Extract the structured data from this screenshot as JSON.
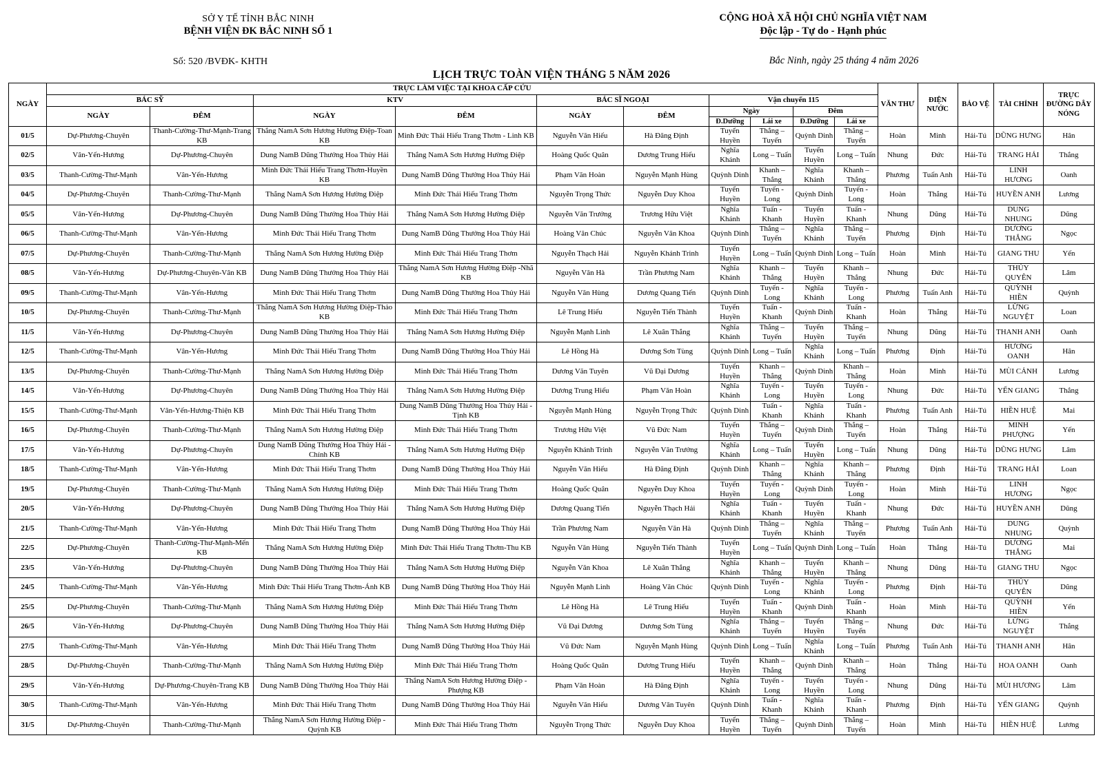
{
  "header": {
    "org_line1": "SỞ Y TẾ TỈNH BẮC NINH",
    "org_line2": "BỆNH VIỆN ĐK BẮC NINH SỐ 1",
    "doc_number": "Số: 520 /BVĐK- KHTH",
    "national_line1": "CỘNG HOÀ XÃ HỘI CHỦ NGHĨA VIỆT NAM",
    "national_line2": "Độc lập - Tự do - Hạnh phúc",
    "date_line": "Bắc Ninh, ngày 25 tháng 4 năm 2026",
    "title": "LỊCH TRỰC TOÀN VIỆN THÁNG 5 NĂM 2026"
  },
  "table": {
    "head": {
      "ngay": "NGÀY",
      "banner": "TRỰC LÀM VIỆC TẠI KHOA CẤP CỨU",
      "bac_sy": "BÁC SỸ",
      "ktv": "KTV",
      "bac_si_ngoai": "BÁC SĨ NGOẠI",
      "van_chuyen": "Vận chuyển 115",
      "sub_ngay_caps": "NGÀY",
      "sub_dem_caps": "ĐÊM",
      "sub_ngay": "Ngày",
      "sub_dem": "Đêm",
      "d_duong": "Đ.Dưỡng",
      "lai_xe": "Lái xe",
      "van_thu": "VĂN THƯ",
      "dien_nuoc": "ĐIỆN NƯỚC",
      "bao_ve": "BẢO VỆ",
      "tai_chinh": "TÀI CHÍNH",
      "duong_day_nong": "TRỰC ĐƯỜNG DÂY NÓNG"
    },
    "rows": [
      [
        "01/5",
        "Dự-Phương-Chuyên",
        "Thanh-Cường-Thư-Mạnh-Trang KB",
        "Thắng NamA Sơn Hương Hường Điệp-Toan KB",
        "Minh Đức Thái Hiếu Trang Thơm - Linh KB",
        "Nguyễn Văn Hiếu",
        "Hà Đăng Định",
        "Tuyển Huyền",
        "Thắng – Tuyến",
        "Quỳnh Dinh",
        "Thắng – Tuyến",
        "Hoàn",
        "Minh",
        "Hải-Tú",
        "DŨNG HƯNG",
        "Hân"
      ],
      [
        "02/5",
        "Vân-Yến-Hương",
        "Dự-Phương-Chuyên",
        "Dung NamB Dũng Thưởng Hoa Thủy Hải",
        "Thắng NamA Sơn Hương Hường Điệp",
        "Hoàng Quốc Quân",
        "Dương Trung Hiếu",
        "Nghĩa Khánh",
        "Long – Tuấn",
        "Tuyển Huyền",
        "Long – Tuấn",
        "Nhung",
        "Đức",
        "Hải-Tú",
        "TRANG HẢI",
        "Thắng"
      ],
      [
        "03/5",
        "Thanh-Cường-Thư-Mạnh",
        "Vân-Yến-Hương",
        "Minh Đức Thái Hiếu Trang Thơm-Huyền KB",
        "Dung NamB Dũng Thưởng Hoa Thủy Hải",
        "Phạm Văn Hoàn",
        "Nguyễn Mạnh Hùng",
        "Quỳnh Dinh",
        "Khanh – Thắng",
        "Nghĩa Khánh",
        "Khanh – Thắng",
        "Phương",
        "Tuấn Anh",
        "Hải-Tú",
        "LINH HƯƠNG",
        "Oanh"
      ],
      [
        "04/5",
        "Dự-Phương-Chuyên",
        "Thanh-Cường-Thư-Mạnh",
        "Thắng NamA Sơn Hương Hường Điệp",
        "Minh Đức Thái Hiếu Trang Thơm",
        "Nguyễn Trọng Thức",
        "Nguyễn Duy Khoa",
        "Tuyển Huyền",
        "Tuyến - Long",
        "Quỳnh Dinh",
        "Tuyến - Long",
        "Hoàn",
        "Thắng",
        "Hải-Tú",
        "HUYỀN ANH",
        "Lương"
      ],
      [
        "05/5",
        "Vân-Yến-Hương",
        "Dự-Phương-Chuyên",
        "Dung NamB Dũng Thưởng Hoa Thủy Hải",
        "Thắng NamA Sơn Hương Hường Điệp",
        "Nguyễn Văn Trưởng",
        "Trương Hữu Việt",
        "Nghĩa Khánh",
        "Tuấn - Khanh",
        "Tuyển Huyền",
        "Tuấn - Khanh",
        "Nhung",
        "Dũng",
        "Hải-Tú",
        "DUNG NHUNG",
        "Dũng"
      ],
      [
        "06/5",
        "Thanh-Cường-Thư-Mạnh",
        "Vân-Yến-Hương",
        "Minh Đức Thái Hiếu Trang Thơm",
        "Dung NamB Dũng Thưởng Hoa Thủy Hải",
        "Hoàng Văn Chúc",
        "Nguyễn Văn Khoa",
        "Quỳnh Dinh",
        "Thắng – Tuyến",
        "Nghĩa Khánh",
        "Thắng – Tuyến",
        "Phương",
        "Định",
        "Hải-Tú",
        "DƯƠNG THẮNG",
        "Ngọc"
      ],
      [
        "07/5",
        "Dự-Phương-Chuyên",
        "Thanh-Cường-Thư-Mạnh",
        "Thắng NamA Sơn Hương Hường Điệp",
        "Minh Đức Thái Hiếu Trang Thơm",
        "Nguyễn Thạch Hải",
        "Nguyễn Khánh Trinh",
        "Tuyển Huyền",
        "Long – Tuấn",
        "Quỳnh Dinh",
        "Long – Tuấn",
        "Hoàn",
        "Minh",
        "Hải-Tú",
        "GIANG THU",
        "Yến"
      ],
      [
        "08/5",
        "Vân-Yến-Hương",
        "Dự-Phương-Chuyên-Vân KB",
        "Dung NamB Dũng Thưởng Hoa Thủy Hải",
        "Thắng NamA Sơn Hương Hường Điệp -Nhã KB",
        "Nguyễn Văn Hà",
        "Trần Phương Nam",
        "Nghĩa Khánh",
        "Khanh – Thắng",
        "Tuyển Huyền",
        "Khanh – Thắng",
        "Nhung",
        "Đức",
        "Hải-Tú",
        "THÚY QUYÊN",
        "Lâm"
      ],
      [
        "09/5",
        "Thanh-Cường-Thư-Mạnh",
        "Vân-Yến-Hương",
        "Minh Đức Thái Hiếu Trang Thơm",
        "Dung NamB Dũng Thưởng Hoa Thủy Hải",
        "Nguyễn Văn Hùng",
        "Dương Quang Tiến",
        "Quỳnh Dinh",
        "Tuyến - Long",
        "Nghĩa Khánh",
        "Tuyến - Long",
        "Phương",
        "Tuấn Anh",
        "Hải-Tú",
        "QUỲNH HIỀN",
        "Quỳnh"
      ],
      [
        "10/5",
        "Dự-Phương-Chuyên",
        "Thanh-Cường-Thư-Mạnh",
        "Thắng NamA Sơn Hương Hường Điệp-Thảo KB",
        "Minh Đức Thái Hiếu Trang Thơm",
        "Lê Trung Hiếu",
        "Nguyễn Tiến Thành",
        "Tuyển Huyền",
        "Tuấn - Khanh",
        "Quỳnh Dinh",
        "Tuấn - Khanh",
        "Hoàn",
        "Thắng",
        "Hải-Tú",
        "LỪNG NGUYỆT",
        "Loan"
      ],
      [
        "11/5",
        "Vân-Yến-Hương",
        "Dự-Phương-Chuyên",
        "Dung NamB Dũng Thưởng Hoa Thủy Hải",
        "Thắng NamA Sơn Hương Hường Điệp",
        "Nguyễn Mạnh Linh",
        "Lê Xuân Thắng",
        "Nghĩa Khánh",
        "Thắng – Tuyến",
        "Tuyển Huyền",
        "Thắng – Tuyến",
        "Nhung",
        "Dũng",
        "Hải-Tú",
        "THANH ANH",
        "Oanh"
      ],
      [
        "12/5",
        "Thanh-Cường-Thư-Mạnh",
        "Vân-Yến-Hương",
        "Minh Đức Thái Hiếu Trang Thơm",
        "Dung NamB Dũng Thưởng Hoa Thủy Hải",
        "Lê Hồng Hà",
        "Dương Sơn Tùng",
        "Quỳnh Dinh",
        "Long – Tuấn",
        "Nghĩa Khánh",
        "Long – Tuấn",
        "Phương",
        "Định",
        "Hải-Tú",
        "HƯƠNG OANH",
        "Hân"
      ],
      [
        "13/5",
        "Dự-Phương-Chuyên",
        "Thanh-Cường-Thư-Mạnh",
        "Thắng NamA Sơn Hương Hường Điệp",
        "Minh Đức Thái Hiếu Trang Thơm",
        "Dương Văn Tuyên",
        "Vũ Đại Dương",
        "Tuyển Huyền",
        "Khanh – Thắng",
        "Quỳnh Dinh",
        "Khanh – Thắng",
        "Hoàn",
        "Minh",
        "Hải-Tú",
        "MÙI CẢNH",
        "Lương"
      ],
      [
        "14/5",
        "Vân-Yến-Hương",
        "Dự-Phương-Chuyên",
        "Dung NamB Dũng Thưởng Hoa Thủy Hải",
        "Thắng NamA Sơn Hương Hường Điệp",
        "Dương Trung Hiếu",
        "Phạm Văn Hoàn",
        "Nghĩa Khánh",
        "Tuyến - Long",
        "Tuyển Huyền",
        "Tuyến - Long",
        "Nhung",
        "Đức",
        "Hải-Tú",
        "YẾN GIANG",
        "Thắng"
      ],
      [
        "15/5",
        "Thanh-Cường-Thư-Mạnh",
        "Vân-Yến-Hương-Thiện KB",
        "Minh Đức Thái Hiếu Trang Thơm",
        "Dung NamB Dũng Thưởng Hoa Thủy Hải -Tịnh KB",
        "Nguyễn Mạnh Hùng",
        "Nguyễn Trọng Thức",
        "Quỳnh Dinh",
        "Tuấn - Khanh",
        "Nghĩa Khánh",
        "Tuấn - Khanh",
        "Phương",
        "Tuấn Anh",
        "Hải-Tú",
        "HIỀN HUỆ",
        "Mai"
      ],
      [
        "16/5",
        "Dự-Phương-Chuyên",
        "Thanh-Cường-Thư-Mạnh",
        "Thắng NamA Sơn Hương Hường Điệp",
        "Minh Đức Thái Hiếu Trang Thơm",
        "Trương Hữu Việt",
        "Vũ Đức Nam",
        "Tuyển Huyền",
        "Thắng – Tuyến",
        "Quỳnh Dinh",
        "Thắng – Tuyến",
        "Hoàn",
        "Thắng",
        "Hải-Tú",
        "MINH PHƯỢNG",
        "Yến"
      ],
      [
        "17/5",
        "Vân-Yến-Hương",
        "Dự-Phương-Chuyên",
        "Dung NamB Dũng Thưởng Hoa Thủy Hải -Chính KB",
        "Thắng NamA Sơn Hương Hường Điệp",
        "Nguyễn Khánh Trinh",
        "Nguyễn Văn Trưởng",
        "Nghĩa Khánh",
        "Long – Tuấn",
        "Tuyển Huyền",
        "Long – Tuấn",
        "Nhung",
        "Dũng",
        "Hải-Tú",
        "DŨNG HƯNG",
        "Lâm"
      ],
      [
        "18/5",
        "Thanh-Cường-Thư-Mạnh",
        "Vân-Yến-Hương",
        "Minh Đức Thái Hiếu Trang Thơm",
        "Dung NamB Dũng Thưởng Hoa Thủy Hải",
        "Nguyễn Văn Hiếu",
        "Hà Đăng Định",
        "Quỳnh Dinh",
        "Khanh – Thắng",
        "Nghĩa Khánh",
        "Khanh – Thắng",
        "Phương",
        "Định",
        "Hải-Tú",
        "TRANG HẢI",
        "Loan"
      ],
      [
        "19/5",
        "Dự-Phương-Chuyên",
        "Thanh-Cường-Thư-Mạnh",
        "Thắng NamA Sơn Hương Hường Điệp",
        "Minh Đức Thái Hiếu Trang Thơm",
        "Hoàng Quốc Quân",
        "Nguyễn Duy Khoa",
        "Tuyển Huyền",
        "Tuyến - Long",
        "Quỳnh Dinh",
        "Tuyến - Long",
        "Hoàn",
        "Minh",
        "Hải-Tú",
        "LINH HƯƠNG",
        "Ngọc"
      ],
      [
        "20/5",
        "Vân-Yến-Hương",
        "Dự-Phương-Chuyên",
        "Dung NamB Dũng Thưởng Hoa Thủy Hải",
        "Thắng NamA Sơn Hương Hường Điệp",
        "Dương Quang Tiến",
        "Nguyễn Thạch Hải",
        "Nghĩa Khánh",
        "Tuấn - Khanh",
        "Tuyển Huyền",
        "Tuấn - Khanh",
        "Nhung",
        "Đức",
        "Hải-Tú",
        "HUYỀN ANH",
        "Dũng"
      ],
      [
        "21/5",
        "Thanh-Cường-Thư-Mạnh",
        "Vân-Yến-Hương",
        "Minh Đức Thái Hiếu Trang Thơm",
        "Dung NamB Dũng Thưởng Hoa Thủy Hải",
        "Trần Phương Nam",
        "Nguyễn Văn Hà",
        "Quỳnh Dinh",
        "Thắng – Tuyến",
        "Nghĩa Khánh",
        "Thắng – Tuyến",
        "Phương",
        "Tuấn Anh",
        "Hải-Tú",
        "DUNG NHUNG",
        "Quỳnh"
      ],
      [
        "22/5",
        "Dự-Phương-Chuyên",
        "Thanh-Cường-Thư-Mạnh-Mến KB",
        "Thắng NamA Sơn Hương Hường Điệp",
        "Minh Đức Thái Hiếu Trang Thơm-Thu KB",
        "Nguyễn Văn Hùng",
        "Nguyễn Tiến Thành",
        "Tuyển Huyền",
        "Long – Tuấn",
        "Quỳnh Dinh",
        "Long – Tuấn",
        "Hoàn",
        "Thắng",
        "Hải-Tú",
        "DƯƠNG THẮNG",
        "Mai"
      ],
      [
        "23/5",
        "Vân-Yến-Hương",
        "Dự-Phương-Chuyên",
        "Dung NamB Dũng Thưởng Hoa Thủy Hải",
        "Thắng NamA Sơn Hương Hường Điệp",
        "Nguyễn Văn Khoa",
        "Lê Xuân Thắng",
        "Nghĩa Khánh",
        "Khanh – Thắng",
        "Tuyển Huyền",
        "Khanh – Thắng",
        "Nhung",
        "Dũng",
        "Hải-Tú",
        "GIANG THU",
        "Ngọc"
      ],
      [
        "24/5",
        "Thanh-Cường-Thư-Mạnh",
        "Vân-Yến-Hương",
        "Minh Đức Thái Hiếu Trang Thơm-Ánh KB",
        "Dung NamB Dũng Thưởng Hoa Thủy Hải",
        "Nguyễn Mạnh Linh",
        "Hoàng Văn Chúc",
        "Quỳnh Dinh",
        "Tuyến - Long",
        "Nghĩa Khánh",
        "Tuyến - Long",
        "Phương",
        "Định",
        "Hải-Tú",
        "THÚY QUYÊN",
        "Dũng"
      ],
      [
        "25/5",
        "Dự-Phương-Chuyên",
        "Thanh-Cường-Thư-Mạnh",
        "Thắng NamA Sơn Hương Hường Điệp",
        "Minh Đức Thái Hiếu Trang Thơm",
        "Lê Hồng Hà",
        "Lê Trung Hiếu",
        "Tuyển Huyền",
        "Tuấn - Khanh",
        "Quỳnh Dinh",
        "Tuấn - Khanh",
        "Hoàn",
        "Minh",
        "Hải-Tú",
        "QUỲNH HIỀN",
        "Yến"
      ],
      [
        "26/5",
        "Vân-Yến-Hương",
        "Dự-Phương-Chuyên",
        "Dung NamB Dũng Thưởng Hoa Thủy Hải",
        "Thắng NamA Sơn Hương Hường Điệp",
        "Vũ Đại Dương",
        "Dương Sơn Tùng",
        "Nghĩa Khánh",
        "Thắng – Tuyến",
        "Tuyển Huyền",
        "Thắng – Tuyến",
        "Nhung",
        "Đức",
        "Hải-Tú",
        "LỪNG NGUYỆT",
        "Thắng"
      ],
      [
        "27/5",
        "Thanh-Cường-Thư-Mạnh",
        "Vân-Yến-Hương",
        "Minh Đức Thái Hiếu Trang Thơm",
        "Dung NamB Dũng Thưởng Hoa Thủy Hải",
        "Vũ Đức Nam",
        "Nguyễn Mạnh Hùng",
        "Quỳnh Dinh",
        "Long – Tuấn",
        "Nghĩa Khánh",
        "Long – Tuấn",
        "Phương",
        "Tuấn Anh",
        "Hải-Tú",
        "THANH ANH",
        "Hân"
      ],
      [
        "28/5",
        "Dự-Phương-Chuyên",
        "Thanh-Cường-Thư-Mạnh",
        "Thắng NamA Sơn Hương Hường Điệp",
        "Minh Đức Thái Hiếu Trang Thơm",
        "Hoàng Quốc Quân",
        "Dương Trung Hiếu",
        "Tuyển Huyền",
        "Khanh – Thắng",
        "Quỳnh Dinh",
        "Khanh – Thắng",
        "Hoàn",
        "Thắng",
        "Hải-Tú",
        "HOA OANH",
        "Oanh"
      ],
      [
        "29/5",
        "Vân-Yến-Hương",
        "Dự-Phương-Chuyên-Trang KB",
        "Dung NamB Dũng Thưởng Hoa Thủy Hải",
        "Thắng NamA Sơn Hương Hường Điệp -Phượng KB",
        "Phạm Văn Hoàn",
        "Hà Đăng Định",
        "Nghĩa Khánh",
        "Tuyến - Long",
        "Tuyển Huyền",
        "Tuyến - Long",
        "Nhung",
        "Dũng",
        "Hải-Tú",
        "MÙI HƯƠNG",
        "Lâm"
      ],
      [
        "30/5",
        "Thanh-Cường-Thư-Mạnh",
        "Vân-Yến-Hương",
        "Minh Đức Thái Hiếu Trang Thơm",
        "Dung NamB Dũng Thưởng Hoa Thủy Hải",
        "Nguyễn Văn Hiếu",
        "Dương Văn Tuyên",
        "Quỳnh Dinh",
        "Tuấn - Khanh",
        "Nghĩa Khánh",
        "Tuấn - Khanh",
        "Phương",
        "Định",
        "Hải-Tú",
        "YẾN GIANG",
        "Quỳnh"
      ],
      [
        "31/5",
        "Dự-Phương-Chuyên",
        "Thanh-Cường-Thư-Mạnh",
        "Thắng NamA Sơn Hương Hường Điệp -Quỳnh KB",
        "Minh Đức Thái Hiếu Trang Thơm",
        "Nguyễn Trọng Thức",
        "Nguyễn Duy Khoa",
        "Tuyển Huyền",
        "Thắng – Tuyến",
        "Quỳnh Dinh",
        "Thắng – Tuyến",
        "Hoàn",
        "Minh",
        "Hải-Tú",
        "HIỀN HUỆ",
        "Lương"
      ]
    ]
  }
}
